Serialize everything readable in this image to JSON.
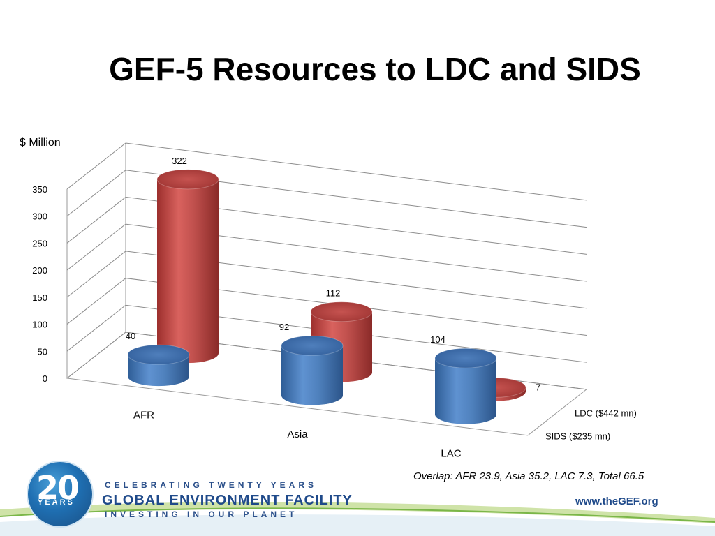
{
  "slide": {
    "title": "GEF-5 Resources to LDC and SIDS",
    "overlap_note": "Overlap:  AFR 23.9, Asia 35.2, LAC 7.3, Total 66.5"
  },
  "chart_data": {
    "type": "bar",
    "title": "GEF-5 Resources to LDC and SIDS",
    "ylabel": "$ Million",
    "xlabel": "",
    "categories": [
      "AFR",
      "Asia",
      "LAC"
    ],
    "ylim": [
      0,
      350
    ],
    "yticks": [
      0,
      50,
      100,
      150,
      200,
      250,
      300,
      350
    ],
    "grid": true,
    "legend": "right",
    "style": "3d-cylinder",
    "series": [
      {
        "name": "LDC ($442 mn)",
        "values": [
          322,
          112,
          7
        ],
        "color": "#c0504d"
      },
      {
        "name": "SIDS ($235 mn)",
        "values": [
          40,
          92,
          104
        ],
        "color": "#4f81bd"
      }
    ]
  },
  "footer": {
    "logo_number": "20",
    "logo_sub": "YEARS",
    "celebrating": "CELEBRATING TWENTY YEARS",
    "org_name": "GLOBAL ENVIRONMENT FACILITY",
    "tagline": "INVESTING IN OUR PLANET",
    "website": "www.theGEF.org"
  }
}
